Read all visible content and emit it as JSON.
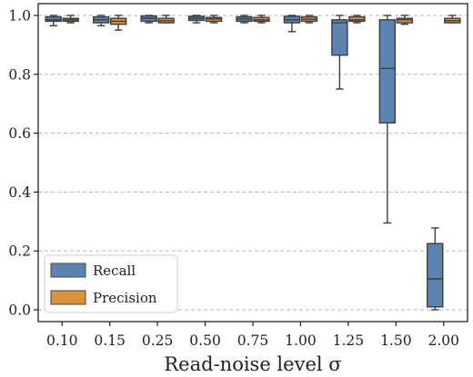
{
  "chart_data": {
    "type": "box",
    "title": "",
    "xlabel": "Read-noise level σ",
    "ylabel": "",
    "categories": [
      "0.10",
      "0.15",
      "0.25",
      "0.50",
      "0.75",
      "1.00",
      "1.25",
      "1.50",
      "2.00"
    ],
    "ylim": [
      -0.04,
      1.04
    ],
    "yticks": [
      0.0,
      0.2,
      0.4,
      0.6,
      0.8,
      1.0
    ],
    "ytick_labels": [
      "0.0",
      "0.2",
      "0.4",
      "0.6",
      "0.8",
      "1.0"
    ],
    "grid": "horizontal-dashed",
    "legend_position": "lower-left",
    "series": [
      {
        "name": "Recall",
        "color": "#5b84b1",
        "boxes": [
          {
            "whisker_low": 0.965,
            "q1": 0.98,
            "median": 0.985,
            "q3": 0.995,
            "whisker_high": 1.0
          },
          {
            "whisker_low": 0.965,
            "q1": 0.975,
            "median": 0.985,
            "q3": 0.995,
            "whisker_high": 1.0
          },
          {
            "whisker_low": 0.975,
            "q1": 0.98,
            "median": 0.99,
            "q3": 0.998,
            "whisker_high": 1.0
          },
          {
            "whisker_low": 0.975,
            "q1": 0.983,
            "median": 0.99,
            "q3": 0.997,
            "whisker_high": 1.0
          },
          {
            "whisker_low": 0.975,
            "q1": 0.98,
            "median": 0.988,
            "q3": 0.995,
            "whisker_high": 1.0
          },
          {
            "whisker_low": 0.945,
            "q1": 0.975,
            "median": 0.985,
            "q3": 0.997,
            "whisker_high": 1.0
          },
          {
            "whisker_low": 0.75,
            "q1": 0.865,
            "median": 0.975,
            "q3": 0.985,
            "whisker_high": 1.0
          },
          {
            "whisker_low": 0.295,
            "q1": 0.635,
            "median": 0.82,
            "q3": 0.985,
            "whisker_high": 1.0
          },
          {
            "whisker_low": 0.0,
            "q1": 0.01,
            "median": 0.105,
            "q3": 0.225,
            "whisker_high": 0.278
          }
        ]
      },
      {
        "name": "Precision",
        "color": "#d9933b",
        "boxes": [
          {
            "whisker_low": 0.975,
            "q1": 0.98,
            "median": 0.985,
            "q3": 0.99,
            "whisker_high": 1.0
          },
          {
            "whisker_low": 0.95,
            "q1": 0.97,
            "median": 0.98,
            "q3": 0.99,
            "whisker_high": 1.0
          },
          {
            "whisker_low": 0.975,
            "q1": 0.975,
            "median": 0.982,
            "q3": 0.99,
            "whisker_high": 1.0
          },
          {
            "whisker_low": 0.975,
            "q1": 0.98,
            "median": 0.988,
            "q3": 0.993,
            "whisker_high": 1.0
          },
          {
            "whisker_low": 0.975,
            "q1": 0.98,
            "median": 0.985,
            "q3": 0.993,
            "whisker_high": 1.0
          },
          {
            "whisker_low": 0.975,
            "q1": 0.98,
            "median": 0.987,
            "q3": 0.995,
            "whisker_high": 1.0
          },
          {
            "whisker_low": 0.975,
            "q1": 0.98,
            "median": 0.985,
            "q3": 0.995,
            "whisker_high": 1.0
          },
          {
            "whisker_low": 0.97,
            "q1": 0.975,
            "median": 0.985,
            "q3": 0.99,
            "whisker_high": 1.0
          },
          {
            "whisker_low": 0.975,
            "q1": 0.975,
            "median": 0.982,
            "q3": 0.99,
            "whisker_high": 1.0
          }
        ]
      }
    ]
  }
}
